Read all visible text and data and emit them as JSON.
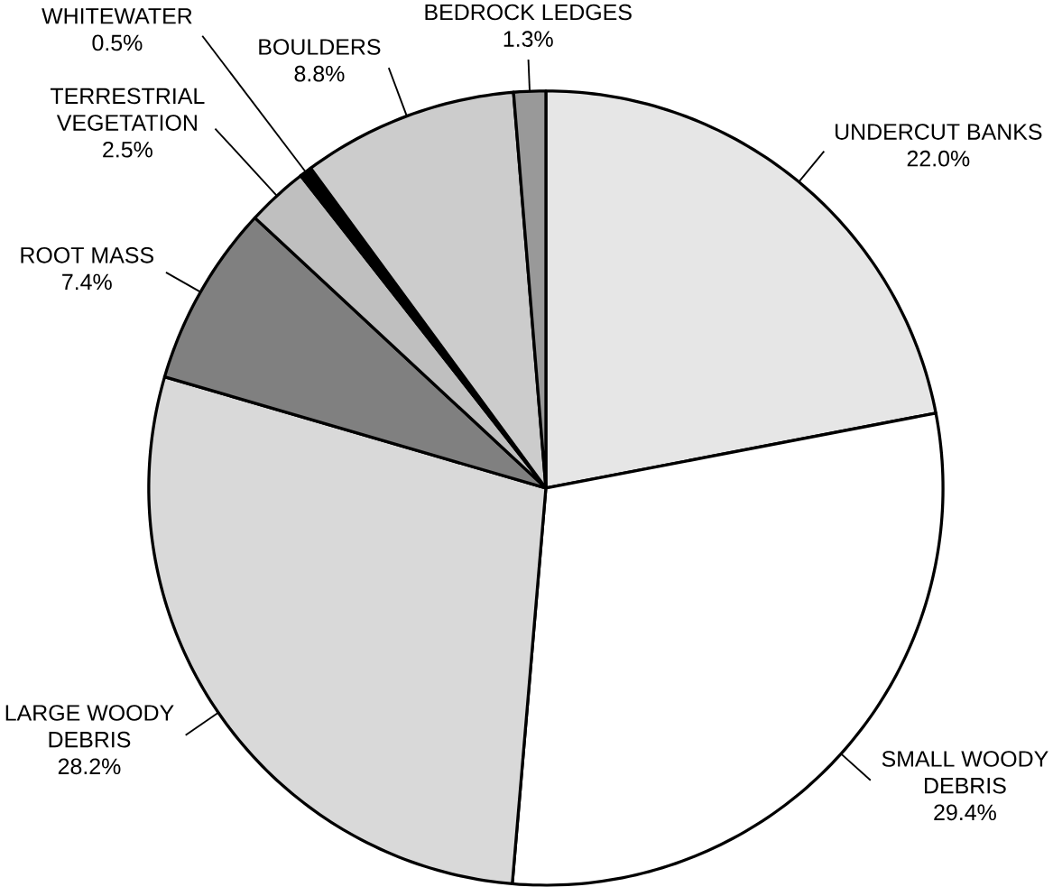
{
  "chart_data": {
    "type": "pie",
    "categories": [
      "UNDERCUT BANKS",
      "SMALL WOODY DEBRIS",
      "LARGE WOODY DEBRIS",
      "ROOT MASS",
      "TERRESTRIAL VEGETATION",
      "WHITEWATER",
      "BOULDERS",
      "BEDROCK LEDGES"
    ],
    "values": [
      22.0,
      29.4,
      28.2,
      7.4,
      2.5,
      0.5,
      8.8,
      1.3
    ],
    "value_labels": [
      "22.0%",
      "29.4%",
      "28.2%",
      "7.4%",
      "2.5%",
      "0.5%",
      "8.8%",
      "1.3%"
    ],
    "colors": [
      "#e6e6e6",
      "#ffffff",
      "#d9d9d9",
      "#808080",
      "#bfbfbf",
      "#000000",
      "#cccccc",
      "#999999"
    ],
    "data_labels": true
  }
}
